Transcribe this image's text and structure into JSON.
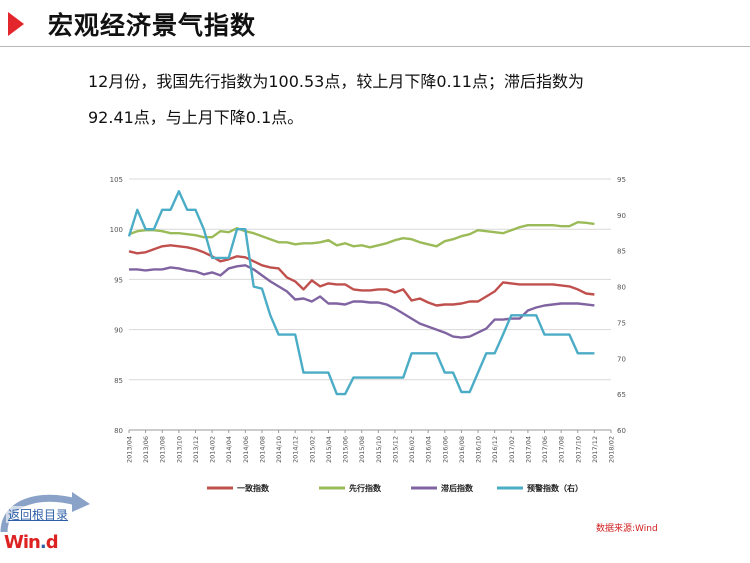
{
  "header": {
    "title": "宏观经济景气指数"
  },
  "summary": {
    "line1": "12月份，我国先行指数为100.53点，较上月下降0.11点；滞后指数为",
    "line2": "92.41点，与上月下降0.1点。"
  },
  "nav": {
    "back_label": "返回根目录"
  },
  "logo": {
    "text": "Win",
    "dot": ".",
    "tail": "d"
  },
  "source": "数据来源:Wind",
  "colors": {
    "accent": "#e3262b",
    "s1": "#c0504d",
    "s2": "#9bbb59",
    "s3": "#8064a2",
    "s4": "#4bacc6"
  },
  "chart_data": {
    "type": "line",
    "x": [
      "2013/04",
      "2013/05",
      "2013/06",
      "2013/07",
      "2013/08",
      "2013/09",
      "2013/10",
      "2013/11",
      "2013/12",
      "2014/01",
      "2014/02",
      "2014/03",
      "2014/04",
      "2014/05",
      "2014/06",
      "2014/07",
      "2014/08",
      "2014/09",
      "2014/10",
      "2014/11",
      "2014/12",
      "2015/01",
      "2015/02",
      "2015/03",
      "2015/04",
      "2015/05",
      "2015/06",
      "2015/07",
      "2015/08",
      "2015/09",
      "2015/10",
      "2015/11",
      "2015/12",
      "2016/01",
      "2016/02",
      "2016/03",
      "2016/04",
      "2016/05",
      "2016/06",
      "2016/07",
      "2016/08",
      "2016/09",
      "2016/10",
      "2016/11",
      "2016/12",
      "2017/01",
      "2017/02",
      "2017/03",
      "2017/04",
      "2017/05",
      "2017/06",
      "2017/07",
      "2017/08",
      "2017/09",
      "2017/10",
      "2017/11",
      "2017/12"
    ],
    "x_ticks": [
      "2013/04",
      "2013/06",
      "2013/08",
      "2013/10",
      "2013/12",
      "2014/02",
      "2014/04",
      "2014/06",
      "2014/08",
      "2014/10",
      "2014/12",
      "2015/02",
      "2015/04",
      "2015/06",
      "2015/08",
      "2015/10",
      "2015/12",
      "2016/02",
      "2016/04",
      "2016/06",
      "2016/08",
      "2016/10",
      "2016/12",
      "2017/02",
      "2017/04",
      "2017/06",
      "2017/08",
      "2017/10",
      "2017/12",
      "2018/02"
    ],
    "ylim_left": [
      80,
      105
    ],
    "yticks_left": [
      "80",
      "85",
      "90",
      "95",
      "100",
      "105"
    ],
    "ylim_right": [
      60,
      95
    ],
    "yticks_right": [
      "60",
      "65",
      "70",
      "75",
      "80",
      "85",
      "90",
      "95"
    ],
    "grid": true,
    "legend": "bottom",
    "series": [
      {
        "name": "一致指数",
        "axis": "left",
        "color": "#c0504d",
        "values": [
          97.8,
          97.6,
          97.7,
          98.0,
          98.3,
          98.4,
          98.3,
          98.2,
          98.0,
          97.7,
          97.3,
          96.8,
          97.0,
          97.3,
          97.2,
          96.8,
          96.4,
          96.2,
          96.1,
          95.2,
          94.8,
          94.0,
          94.9,
          94.3,
          94.6,
          94.5,
          94.5,
          94.0,
          93.9,
          93.9,
          94.0,
          94.0,
          93.7,
          94.0,
          92.9,
          93.1,
          92.7,
          92.4,
          92.5,
          92.5,
          92.6,
          92.8,
          92.8,
          93.3,
          93.8,
          94.7,
          94.6,
          94.5,
          94.5,
          94.5,
          94.5,
          94.5,
          94.4,
          94.3,
          94.0,
          93.6,
          93.5
        ]
      },
      {
        "name": "先行指数",
        "axis": "left",
        "color": "#9bbb59",
        "values": [
          99.5,
          99.8,
          99.9,
          99.9,
          99.8,
          99.6,
          99.6,
          99.5,
          99.4,
          99.2,
          99.2,
          99.8,
          99.7,
          100.1,
          99.8,
          99.6,
          99.3,
          99.0,
          98.7,
          98.7,
          98.5,
          98.6,
          98.6,
          98.7,
          98.9,
          98.4,
          98.6,
          98.3,
          98.4,
          98.2,
          98.4,
          98.6,
          98.9,
          99.1,
          99.0,
          98.7,
          98.5,
          98.3,
          98.8,
          99.0,
          99.3,
          99.5,
          99.9,
          99.8,
          99.7,
          99.6,
          99.9,
          100.2,
          100.4,
          100.4,
          100.4,
          100.4,
          100.3,
          100.3,
          100.7,
          100.64,
          100.53
        ]
      },
      {
        "name": "滞后指数",
        "axis": "left",
        "color": "#8064a2",
        "values": [
          96.0,
          96.0,
          95.9,
          96.0,
          96.0,
          96.2,
          96.1,
          95.9,
          95.8,
          95.5,
          95.7,
          95.4,
          96.1,
          96.3,
          96.4,
          96.0,
          95.4,
          94.8,
          94.3,
          93.8,
          93.0,
          93.1,
          92.8,
          93.3,
          92.6,
          92.6,
          92.5,
          92.8,
          92.8,
          92.7,
          92.7,
          92.5,
          92.1,
          91.6,
          91.1,
          90.6,
          90.3,
          90.0,
          89.7,
          89.3,
          89.2,
          89.3,
          89.7,
          90.1,
          91.0,
          91.0,
          91.1,
          91.1,
          91.9,
          92.2,
          92.4,
          92.5,
          92.6,
          92.6,
          92.6,
          92.51,
          92.41
        ]
      },
      {
        "name": "预警指数（右）",
        "axis": "right",
        "color": "#4bacc6",
        "values": [
          87.0,
          90.7,
          88.0,
          88.0,
          90.7,
          90.7,
          93.3,
          90.7,
          90.7,
          88.0,
          84.0,
          84.0,
          84.0,
          88.0,
          88.0,
          80.0,
          79.7,
          76.0,
          73.3,
          73.3,
          73.3,
          68.0,
          68.0,
          68.0,
          68.0,
          65.0,
          65.0,
          67.3,
          67.3,
          67.3,
          67.3,
          67.3,
          67.3,
          67.3,
          70.7,
          70.7,
          70.7,
          70.7,
          68.0,
          68.0,
          65.3,
          65.3,
          68.0,
          70.7,
          70.7,
          73.3,
          76.0,
          76.0,
          76.0,
          76.0,
          73.3,
          73.3,
          73.3,
          73.3,
          70.7,
          70.7,
          70.7
        ]
      }
    ]
  }
}
